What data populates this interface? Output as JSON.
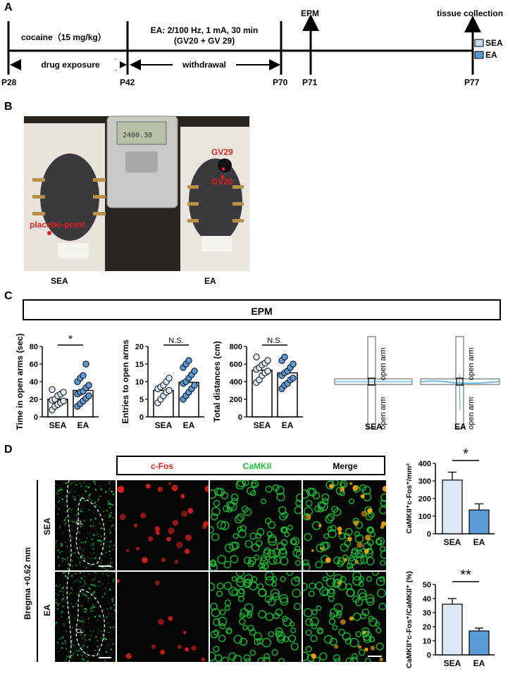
{
  "panels": {
    "a": "A",
    "b": "B",
    "c": "C",
    "d": "D"
  },
  "timeline": {
    "cocaine_label": "cocaine（15 mg/kg）",
    "ea_label_line1": "EA: 2/100 Hz, 1 mA, 30 min",
    "ea_label_line2": "(GV20 + GV 29)",
    "drug_exposure": "drug exposure",
    "withdrawal": "withdrawal",
    "epm": "EPM",
    "tissue": "tissue collection",
    "ticks": [
      "P28",
      "P42",
      "P70",
      "P71",
      "P77"
    ],
    "legend": [
      {
        "label": "SEA",
        "color": "#c5d9f1"
      },
      {
        "label": "EA",
        "color": "#5b9bd5"
      }
    ]
  },
  "photo": {
    "sea_label": "SEA",
    "ea_label": "EA",
    "placebo": "placebo-point",
    "gv29": "GV29",
    "gv20": "GV20",
    "device_screen": "2400.30"
  },
  "epm_title": "EPM",
  "maze": {
    "open_arm": "open arm",
    "labels": [
      "SEA",
      "EA"
    ]
  },
  "charts_c": [
    {
      "ylabel": "Time in open arms (sec)",
      "sig": "*",
      "ticks": [
        "0",
        "20",
        "40",
        "60",
        "80"
      ]
    },
    {
      "ylabel": "Entries to open arms",
      "sig": "N.S.",
      "ticks": [
        "0",
        "5",
        "10",
        "15",
        "20"
      ]
    },
    {
      "ylabel": "Total distances (cm)",
      "sig": "N.S.",
      "ticks": [
        "0",
        "200",
        "400",
        "600",
        "800"
      ]
    }
  ],
  "chart_data": [
    {
      "type": "bar",
      "categories": [
        "SEA",
        "EA"
      ],
      "values": [
        20,
        30
      ],
      "ylabel": "Time in open arms (sec)",
      "ylim": [
        0,
        80
      ],
      "points": [
        [
          8,
          12,
          14,
          16,
          18,
          19,
          20,
          24,
          26,
          28,
          31
        ],
        [
          12,
          15,
          18,
          21,
          24,
          26,
          28,
          29,
          33,
          36,
          40,
          44,
          47,
          60
        ]
      ]
    },
    {
      "type": "bar",
      "categories": [
        "SEA",
        "EA"
      ],
      "values": [
        7.5,
        9.8
      ],
      "ylabel": "Entries to open arms",
      "ylim": [
        0,
        20
      ],
      "points": [
        [
          4,
          5,
          6,
          7,
          7.5,
          8,
          8.5,
          9,
          10,
          11
        ],
        [
          5,
          6,
          7,
          8,
          9,
          9.5,
          10,
          11,
          12,
          13,
          14,
          15,
          16
        ]
      ]
    },
    {
      "type": "bar",
      "categories": [
        "SEA",
        "EA"
      ],
      "values": [
        530,
        500
      ],
      "ylabel": "Total distances (cm)",
      "ylim": [
        0,
        800
      ],
      "points": [
        [
          390,
          420,
          470,
          500,
          520,
          540,
          560,
          590,
          610,
          640,
          680
        ],
        [
          320,
          360,
          380,
          420,
          440,
          470,
          500,
          520,
          560,
          600,
          640,
          680
        ]
      ]
    },
    {
      "type": "bar",
      "categories": [
        "SEA",
        "EA"
      ],
      "values": [
        305,
        135
      ],
      "errors": [
        45,
        35
      ],
      "ylabel": "CaMKII⁺c-Fos⁺/mm²",
      "ylim": [
        0,
        400
      ]
    },
    {
      "type": "bar",
      "categories": [
        "SEA",
        "EA"
      ],
      "values": [
        36,
        17
      ],
      "errors": [
        4,
        2
      ],
      "ylabel": "CaMKII⁺c-Fos⁺/CaMKII⁺ (%)",
      "ylim": [
        0,
        50
      ]
    }
  ],
  "micro": {
    "headers": [
      "c-Fos",
      "CaMKII",
      "Merge"
    ],
    "bregma": "Bregma +0.62 mm",
    "rows": [
      "SEA",
      "EA"
    ],
    "cl": "CL"
  },
  "charts_d": [
    {
      "ylabel": "CaMKII⁺c-Fos⁺/mm²",
      "sig": "*",
      "ticks": [
        "0",
        "100",
        "200",
        "300",
        "400"
      ],
      "categories": [
        "SEA",
        "EA"
      ]
    },
    {
      "ylabel": "CaMKII⁺c-Fos⁺/CaMKII⁺ (%)",
      "sig": "**",
      "ticks": [
        "0",
        "10",
        "20",
        "30",
        "40",
        "50"
      ],
      "categories": [
        "SEA",
        "EA"
      ]
    }
  ],
  "colors": {
    "sea": "#dde8f6",
    "ea": "#5b9bd5",
    "red": "#e02020",
    "green": "#1fbf3a"
  }
}
